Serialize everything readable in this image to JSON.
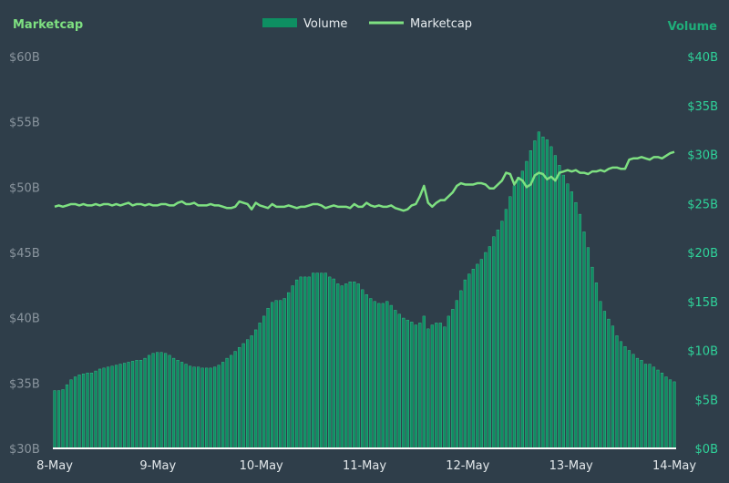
{
  "chart_data": {
    "type": "bar+line",
    "legend": {
      "placement": "top-center",
      "items": [
        {
          "label": "Volume",
          "color": "#0e8f62",
          "kind": "bar"
        },
        {
          "label": "Marketcap",
          "color": "#7ee081",
          "kind": "line"
        }
      ]
    },
    "y_left": {
      "title": "Marketcap",
      "title_color": "#7ee081",
      "range": [
        30,
        60
      ],
      "ticks": [
        "$30B",
        "$35B",
        "$40B",
        "$45B",
        "$50B",
        "$55B",
        "$60B"
      ]
    },
    "y_right": {
      "title": "Volume",
      "title_color": "#1fae7a",
      "range": [
        0,
        40
      ],
      "ticks": [
        "$0B",
        "$5B",
        "$10B",
        "$15B",
        "$20B",
        "$25B",
        "$30B",
        "$35B",
        "$40B"
      ]
    },
    "x_axis": {
      "range": [
        0,
        6
      ],
      "ticks": [
        "8-May",
        "9-May",
        "10-May",
        "11-May",
        "12-May",
        "13-May",
        "14-May"
      ]
    },
    "grid": false,
    "colors": {
      "background": "#2f3e4a",
      "volume": "#0e8f62",
      "volume_edge": "#3ec394",
      "marketcap": "#7ee081",
      "left_tick": "#8a959e",
      "right_tick": "#2fd39a",
      "baseline": "#ffffff"
    },
    "series": [
      {
        "name": "Volume",
        "axis": "right",
        "unit": "$B",
        "values": [
          5.9,
          5.9,
          6.0,
          6.5,
          7.0,
          7.3,
          7.5,
          7.6,
          7.7,
          7.7,
          7.9,
          8.1,
          8.2,
          8.3,
          8.4,
          8.5,
          8.6,
          8.7,
          8.8,
          8.9,
          9.0,
          9.0,
          9.2,
          9.5,
          9.7,
          9.8,
          9.8,
          9.7,
          9.5,
          9.2,
          9.0,
          8.8,
          8.6,
          8.4,
          8.3,
          8.3,
          8.2,
          8.2,
          8.2,
          8.3,
          8.5,
          8.8,
          9.2,
          9.5,
          9.9,
          10.3,
          10.7,
          11.1,
          11.5,
          12.1,
          12.8,
          13.5,
          14.3,
          14.9,
          15.1,
          15.1,
          15.3,
          15.9,
          16.6,
          17.2,
          17.5,
          17.5,
          17.5,
          17.9,
          17.9,
          17.9,
          17.9,
          17.5,
          17.3,
          16.8,
          16.6,
          16.8,
          17.0,
          17.0,
          16.8,
          16.2,
          15.7,
          15.3,
          15.0,
          14.8,
          14.8,
          15.0,
          14.6,
          14.1,
          13.7,
          13.3,
          13.1,
          12.9,
          12.6,
          12.8,
          13.5,
          12.2,
          12.6,
          12.8,
          12.8,
          12.4,
          13.5,
          14.2,
          15.1,
          16.1,
          17.2,
          17.8,
          18.3,
          18.8,
          19.3,
          20.0,
          20.6,
          21.6,
          22.3,
          23.2,
          24.4,
          25.7,
          26.8,
          27.7,
          28.3,
          29.3,
          30.4,
          31.4,
          32.3,
          31.8,
          31.5,
          30.8,
          29.9,
          28.9,
          27.9,
          27.0,
          26.2,
          25.1,
          23.9,
          22.1,
          20.5,
          18.5,
          16.9,
          15.0,
          14.0,
          13.2,
          12.5,
          11.5,
          10.9,
          10.4,
          10.0,
          9.6,
          9.2,
          9.0,
          8.6,
          8.6,
          8.3,
          8.0,
          7.7,
          7.3,
          7.0,
          6.8
        ]
      },
      {
        "name": "Marketcap",
        "axis": "left",
        "unit": "$B",
        "values": [
          48.5,
          48.6,
          48.5,
          48.6,
          48.7,
          48.7,
          48.6,
          48.7,
          48.6,
          48.6,
          48.7,
          48.6,
          48.7,
          48.7,
          48.6,
          48.7,
          48.6,
          48.7,
          48.8,
          48.6,
          48.7,
          48.7,
          48.6,
          48.7,
          48.6,
          48.6,
          48.7,
          48.7,
          48.6,
          48.6,
          48.8,
          48.9,
          48.7,
          48.7,
          48.8,
          48.6,
          48.6,
          48.6,
          48.7,
          48.6,
          48.6,
          48.5,
          48.4,
          48.4,
          48.5,
          48.9,
          48.8,
          48.7,
          48.3,
          48.8,
          48.6,
          48.5,
          48.4,
          48.7,
          48.5,
          48.5,
          48.5,
          48.6,
          48.5,
          48.4,
          48.5,
          48.5,
          48.6,
          48.7,
          48.7,
          48.6,
          48.4,
          48.5,
          48.6,
          48.5,
          48.5,
          48.5,
          48.4,
          48.7,
          48.5,
          48.5,
          48.8,
          48.6,
          48.5,
          48.6,
          48.5,
          48.5,
          48.6,
          48.4,
          48.3,
          48.2,
          48.3,
          48.6,
          48.7,
          49.3,
          50.1,
          48.8,
          48.5,
          48.8,
          49.0,
          49.0,
          49.3,
          49.6,
          50.1,
          50.3,
          50.2,
          50.2,
          50.2,
          50.3,
          50.3,
          50.2,
          49.9,
          49.9,
          50.2,
          50.5,
          51.1,
          51.0,
          50.2,
          50.7,
          50.5,
          50.0,
          50.2,
          50.9,
          51.1,
          51.0,
          50.6,
          50.8,
          50.5,
          51.1,
          51.2,
          51.3,
          51.2,
          51.3,
          51.1,
          51.1,
          51.0,
          51.2,
          51.2,
          51.3,
          51.2,
          51.4,
          51.5,
          51.5,
          51.4,
          51.4,
          52.1,
          52.2,
          52.2,
          52.3,
          52.2,
          52.1,
          52.3,
          52.3,
          52.2,
          52.4,
          52.6,
          52.7
        ]
      }
    ]
  }
}
